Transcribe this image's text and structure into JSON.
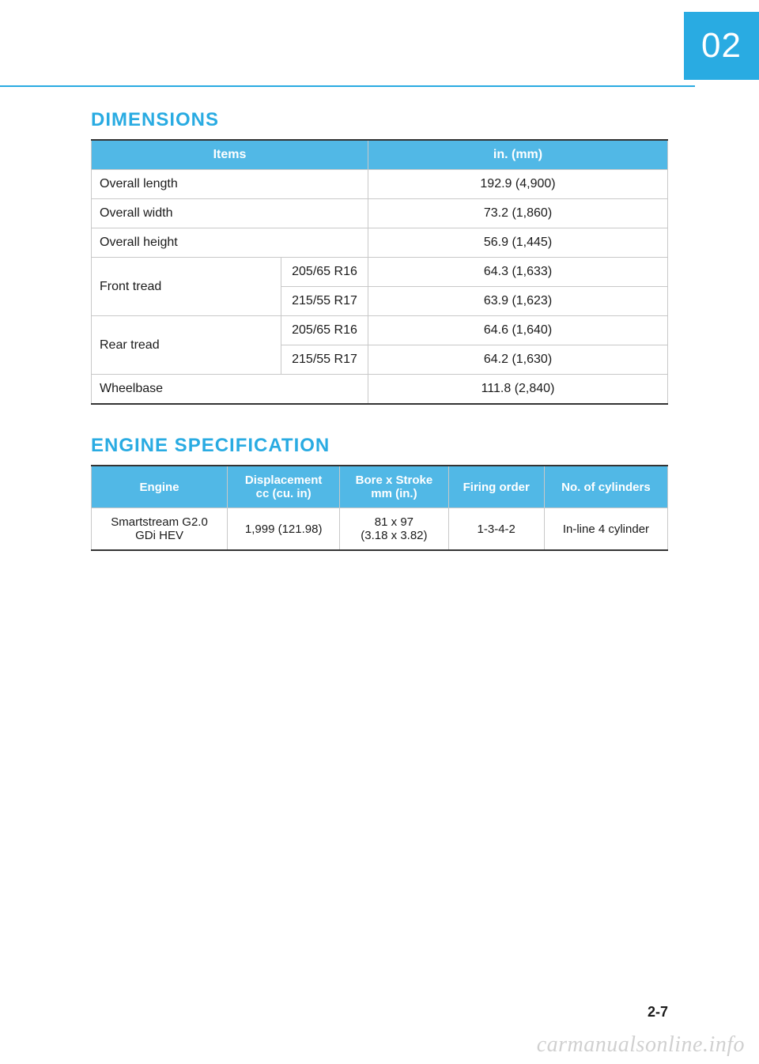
{
  "chapter": "02",
  "page_number": "2-7",
  "watermark": "carmanualsonline.info",
  "colors": {
    "accent": "#29abe2",
    "header_bg": "#51b8e6",
    "header_text": "#ffffff",
    "border": "#c8c8c8",
    "body_text": "#1a1a1a",
    "page_bg": "#ffffff"
  },
  "dimensions": {
    "title": "DIMENSIONS",
    "headers": {
      "items": "Items",
      "value": "in. (mm)"
    },
    "rows": [
      {
        "label": "Overall length",
        "value": "192.9 (4,900)"
      },
      {
        "label": "Overall width",
        "value": "73.2 (1,860)"
      },
      {
        "label": "Overall height",
        "value": "56.9 (1,445)"
      }
    ],
    "front_tread": {
      "label": "Front tread",
      "r1": {
        "spec": "205/65 R16",
        "value": "64.3 (1,633)"
      },
      "r2": {
        "spec": "215/55 R17",
        "value": "63.9 (1,623)"
      }
    },
    "rear_tread": {
      "label": "Rear tread",
      "r1": {
        "spec": "205/65 R16",
        "value": "64.6 (1,640)"
      },
      "r2": {
        "spec": "215/55 R17",
        "value": "64.2 (1,630)"
      }
    },
    "wheelbase": {
      "label": "Wheelbase",
      "value": "111.8 (2,840)"
    }
  },
  "engine": {
    "title": "ENGINE SPECIFICATION",
    "headers": {
      "engine": "Engine",
      "displacement": "Displacement\ncc (cu. in)",
      "bore": "Bore x Stroke\nmm (in.)",
      "firing": "Firing order",
      "cyl": "No. of cylinders"
    },
    "row": {
      "engine": "Smartstream G2.0\nGDi HEV",
      "displacement": "1,999 (121.98)",
      "bore": "81 x 97\n(3.18 x 3.82)",
      "firing": "1-3-4-2",
      "cyl": "In-line 4 cylinder"
    }
  }
}
